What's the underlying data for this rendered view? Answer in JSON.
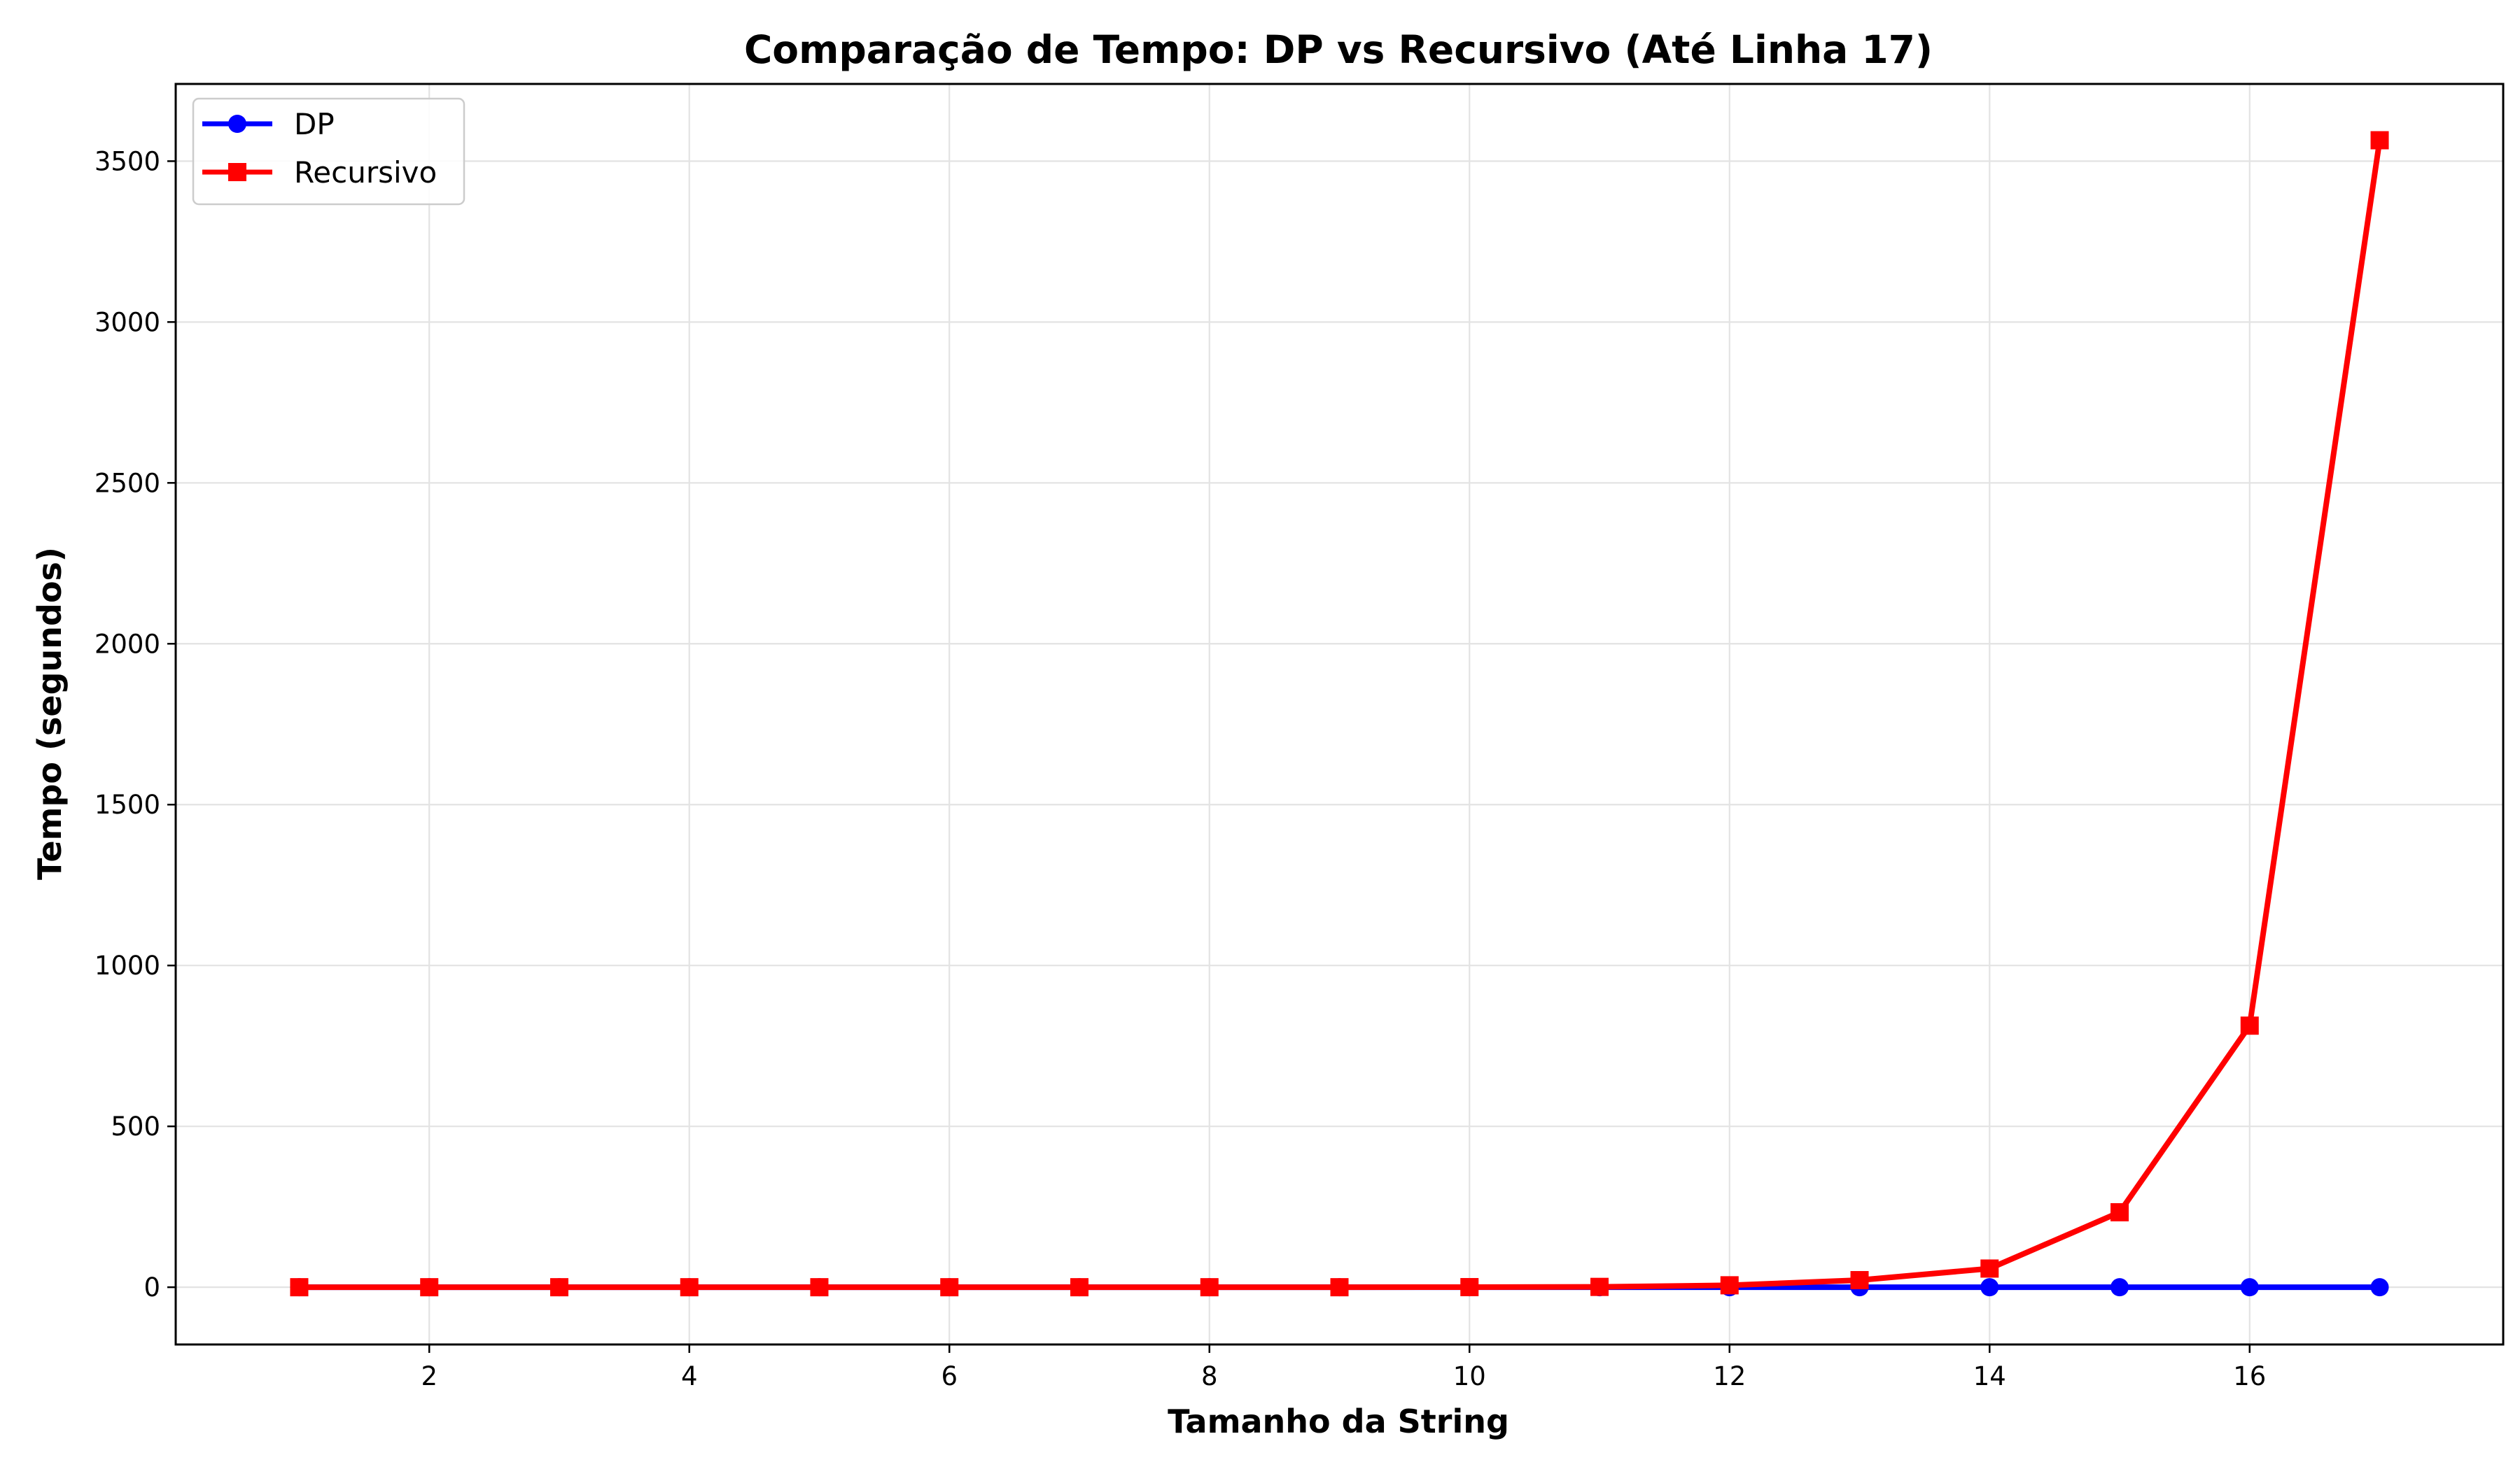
{
  "chart_data": {
    "type": "line",
    "title": "Comparação de Tempo: DP vs Recursivo (Até Linha 17)",
    "xlabel": "Tamanho da String",
    "ylabel": "Tempo (segundos)",
    "x": [
      1,
      2,
      3,
      4,
      5,
      6,
      7,
      8,
      9,
      10,
      11,
      12,
      13,
      14,
      15,
      16,
      17
    ],
    "xlim": [
      0.05,
      17.95
    ],
    "ylim": [
      -178,
      3740
    ],
    "x_ticks": [
      2,
      4,
      6,
      8,
      10,
      12,
      14,
      16
    ],
    "y_ticks": [
      0,
      500,
      1000,
      1500,
      2000,
      2500,
      3000,
      3500
    ],
    "grid": true,
    "legend_position": "top-left",
    "series": [
      {
        "name": "DP",
        "color": "#0000ff",
        "marker": "circle",
        "values": [
          0,
          0,
          0,
          0,
          0,
          0,
          0,
          0,
          0,
          0,
          0,
          0,
          0,
          0,
          0,
          0,
          0
        ]
      },
      {
        "name": "Recursivo",
        "color": "#ff0000",
        "marker": "square",
        "values": [
          0,
          0,
          0,
          0,
          0,
          0,
          0,
          0,
          0,
          0.3,
          1,
          6,
          22,
          58,
          233,
          813,
          3565
        ]
      }
    ]
  }
}
